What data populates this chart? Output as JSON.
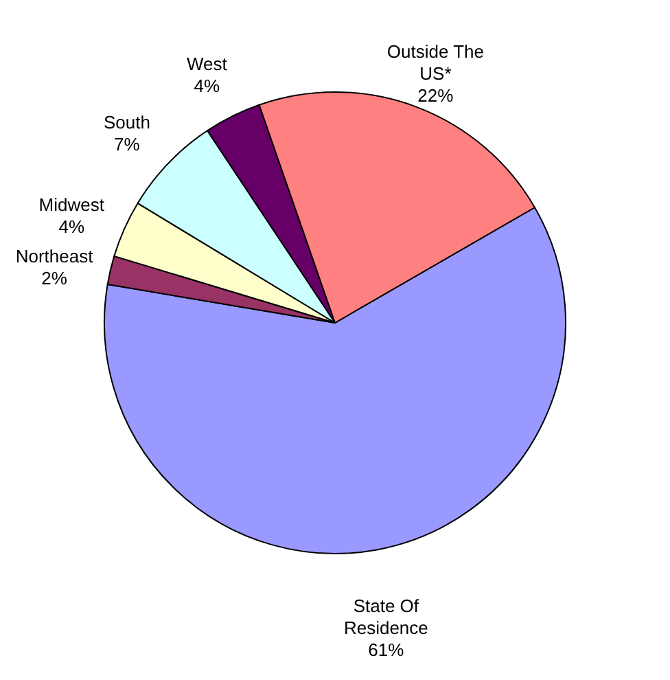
{
  "chart_data": {
    "type": "pie",
    "categories": [
      "State Of Residence",
      "Northeast",
      "Midwest",
      "South",
      "West",
      "Outside The US*"
    ],
    "values": [
      61,
      2,
      4,
      7,
      4,
      22
    ],
    "value_labels": [
      "61%",
      "2%",
      "4%",
      "7%",
      "4%",
      "22%"
    ],
    "colors": [
      "#9999ff",
      "#993366",
      "#ffffcc",
      "#ccffff",
      "#660066",
      "#ff8080"
    ],
    "data_labels": true
  }
}
